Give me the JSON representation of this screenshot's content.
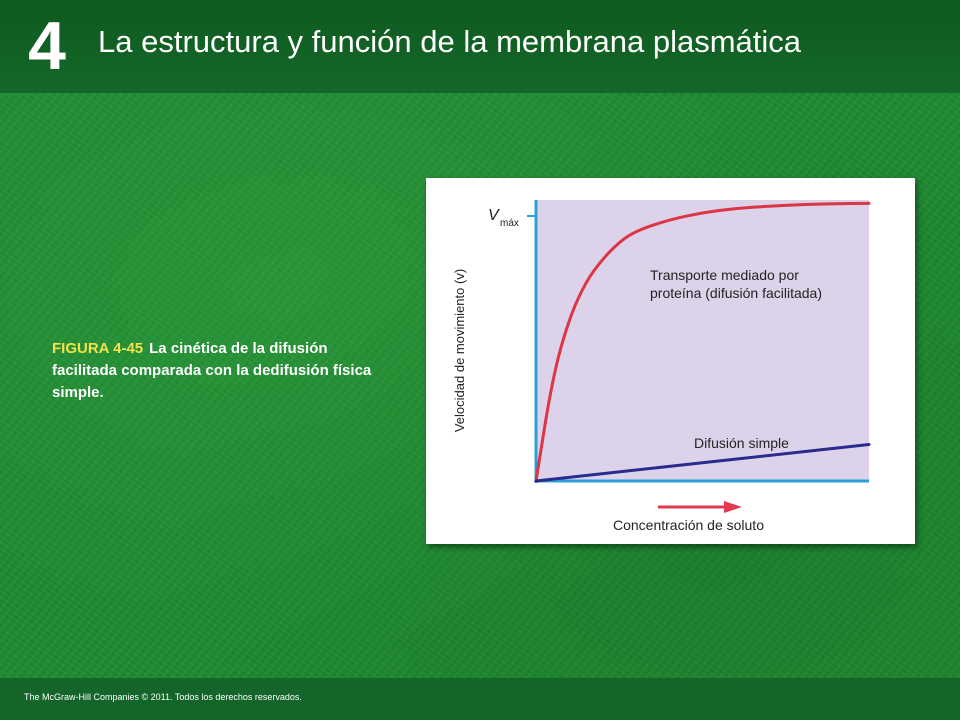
{
  "slide": {
    "chapter_number": "4",
    "title": "La estructura y función de la membrana plasmática",
    "caption_label": "FIGURA 4-45",
    "caption_text": "La cinética de la difusión facilitada comparada con la dedifusión física simple.",
    "copyright": "The McGraw-Hill Companies © 2011. Todos los derechos reservados."
  },
  "chart_data": {
    "type": "line",
    "title": "",
    "xlabel": "Concentración de soluto",
    "ylabel": "Velocidad de movimiento (v)",
    "ytick_label": "V",
    "ytick_label_sub": "máx",
    "grid": false,
    "legend": "none",
    "xlim": [
      0,
      1
    ],
    "ylim": [
      0,
      1
    ],
    "background_color": "#dcd3ea",
    "axis_color": "#2b9fd6",
    "arrow_color": "#e23a4e",
    "series": [
      {
        "name": "Transporte mediado por proteína (difusión facilitada)",
        "label_lines": [
          "Transporte mediado por",
          "proteína (difusión facilitada)"
        ],
        "color": "#dc3545",
        "x": [
          0,
          0.05,
          0.1,
          0.15,
          0.2,
          0.25,
          0.3,
          0.4,
          0.5,
          0.6,
          0.7,
          0.8,
          0.9,
          1.0
        ],
        "y": [
          0,
          0.37,
          0.58,
          0.71,
          0.79,
          0.85,
          0.89,
          0.93,
          0.955,
          0.97,
          0.978,
          0.984,
          0.987,
          0.988
        ]
      },
      {
        "name": "Difusión simple",
        "label_lines": [
          "Difusión simple"
        ],
        "color": "#2a2b8c",
        "x": [
          0,
          1
        ],
        "y": [
          0,
          0.13
        ]
      }
    ]
  }
}
